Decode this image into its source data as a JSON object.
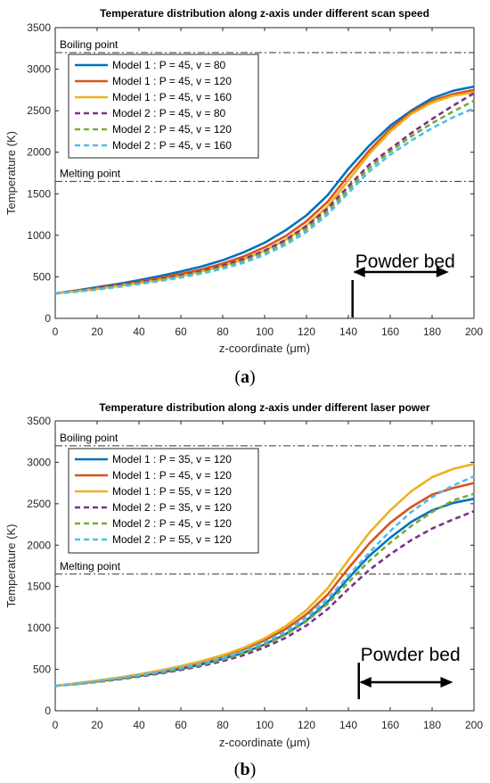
{
  "panels": [
    {
      "id": "a",
      "panel_label": "a",
      "title": "Temperature distribution along z-axis under different scan speed",
      "boiling_label": "Boiling point",
      "melting_label": "Melting point",
      "powder_label": "Powder bed",
      "xlabel": "z-coordinate (μm)",
      "ylabel": "Temperature (K)"
    },
    {
      "id": "b",
      "panel_label": "b",
      "title": "Temperature distribution along z-axis under different laser power",
      "boiling_label": "Boiling point",
      "melting_label": "Melting point",
      "powder_label": "Powder bed",
      "xlabel": "z-coordinate (μm)",
      "ylabel": "Temperature (K)"
    }
  ],
  "chart_data": [
    {
      "type": "line",
      "title": "Temperature distribution along z-axis under different scan speed",
      "xlabel": "z-coordinate (μm)",
      "ylabel": "Temperature (K)",
      "xlim": [
        0,
        200
      ],
      "ylim": [
        0,
        3500
      ],
      "xticks": [
        0,
        20,
        40,
        60,
        80,
        100,
        120,
        140,
        160,
        180,
        200
      ],
      "yticks": [
        0,
        500,
        1000,
        1500,
        2000,
        2500,
        3000,
        3500
      ],
      "grid": false,
      "legend_position": "top-left",
      "reference_lines": [
        {
          "label": "Boiling point",
          "y": 3200
        },
        {
          "label": "Melting point",
          "y": 1650
        }
      ],
      "annotation": {
        "label": "Powder bed",
        "x_start": 142,
        "x_end": 188
      },
      "x": [
        0,
        10,
        20,
        30,
        40,
        50,
        60,
        70,
        80,
        90,
        100,
        110,
        120,
        130,
        140,
        150,
        160,
        170,
        180,
        190,
        200
      ],
      "series": [
        {
          "name": "Model 1 : P = 45, v = 80",
          "color": "#0072BD",
          "dash": "solid",
          "values": [
            300,
            335,
            375,
            415,
            460,
            510,
            565,
            625,
            700,
            795,
            910,
            1060,
            1240,
            1480,
            1800,
            2080,
            2320,
            2500,
            2650,
            2740,
            2790
          ]
        },
        {
          "name": "Model 1 : P = 45, v = 120",
          "color": "#D95319",
          "dash": "solid",
          "values": [
            300,
            330,
            365,
            400,
            440,
            485,
            535,
            590,
            660,
            745,
            855,
            990,
            1170,
            1400,
            1720,
            2020,
            2280,
            2480,
            2620,
            2700,
            2750
          ]
        },
        {
          "name": "Model 1 : P = 45, v = 160",
          "color": "#EDB120",
          "dash": "solid",
          "values": [
            300,
            325,
            355,
            390,
            425,
            465,
            510,
            565,
            630,
            710,
            815,
            945,
            1120,
            1345,
            1660,
            1980,
            2250,
            2460,
            2600,
            2680,
            2720
          ]
        },
        {
          "name": "Model 2 : P = 45, v = 80",
          "color": "#7E2F8E",
          "dash": "dashed",
          "values": [
            300,
            330,
            360,
            395,
            430,
            470,
            515,
            570,
            635,
            715,
            815,
            945,
            1110,
            1320,
            1590,
            1850,
            2040,
            2230,
            2400,
            2560,
            2710
          ]
        },
        {
          "name": "Model 2 : P = 45, v = 120",
          "color": "#77AC30",
          "dash": "dashed",
          "values": [
            300,
            325,
            352,
            385,
            420,
            460,
            505,
            555,
            615,
            690,
            790,
            915,
            1075,
            1285,
            1550,
            1810,
            2010,
            2190,
            2350,
            2490,
            2620
          ]
        },
        {
          "name": "Model 2 : P = 45, v = 160",
          "color": "#4DBEEE",
          "dash": "dashed",
          "values": [
            300,
            320,
            347,
            378,
            412,
            450,
            492,
            540,
            598,
            670,
            765,
            885,
            1040,
            1250,
            1510,
            1770,
            1970,
            2140,
            2290,
            2420,
            2530
          ]
        }
      ]
    },
    {
      "type": "line",
      "title": "Temperature distribution along z-axis under different laser power",
      "xlabel": "z-coordinate (μm)",
      "ylabel": "Temperature (K)",
      "xlim": [
        0,
        200
      ],
      "ylim": [
        0,
        3500
      ],
      "xticks": [
        0,
        20,
        40,
        60,
        80,
        100,
        120,
        140,
        160,
        180,
        200
      ],
      "yticks": [
        0,
        500,
        1000,
        1500,
        2000,
        2500,
        3000,
        3500
      ],
      "grid": false,
      "legend_position": "top-left",
      "reference_lines": [
        {
          "label": "Boiling point",
          "y": 3200
        },
        {
          "label": "Melting point",
          "y": 1650
        }
      ],
      "annotation": {
        "label": "Powder bed",
        "x_start": 145,
        "x_end": 190
      },
      "x": [
        0,
        10,
        20,
        30,
        40,
        50,
        60,
        70,
        80,
        90,
        100,
        110,
        120,
        130,
        140,
        150,
        160,
        170,
        180,
        190,
        200
      ],
      "series": [
        {
          "name": "Model 1 : P = 35, v = 120",
          "color": "#0072BD",
          "dash": "solid",
          "values": [
            300,
            325,
            355,
            385,
            420,
            460,
            505,
            560,
            625,
            700,
            800,
            925,
            1090,
            1310,
            1600,
            1870,
            2090,
            2280,
            2420,
            2510,
            2560
          ]
        },
        {
          "name": "Model 1 : P = 45, v = 120",
          "color": "#D95319",
          "dash": "solid",
          "values": [
            300,
            330,
            360,
            395,
            435,
            480,
            530,
            585,
            655,
            740,
            850,
            985,
            1165,
            1400,
            1720,
            2020,
            2270,
            2460,
            2610,
            2690,
            2750
          ]
        },
        {
          "name": "Model 1 : P = 55, v = 120",
          "color": "#EDB120",
          "dash": "solid",
          "values": [
            300,
            332,
            365,
            400,
            440,
            487,
            540,
            600,
            672,
            760,
            875,
            1020,
            1215,
            1475,
            1820,
            2150,
            2420,
            2650,
            2820,
            2920,
            2980
          ]
        },
        {
          "name": "Model 2 : P = 35, v = 120",
          "color": "#7E2F8E",
          "dash": "dashed",
          "values": [
            300,
            322,
            348,
            378,
            412,
            450,
            493,
            542,
            600,
            672,
            765,
            880,
            1030,
            1225,
            1470,
            1700,
            1890,
            2060,
            2200,
            2310,
            2410
          ]
        },
        {
          "name": "Model 2 : P = 45, v = 120",
          "color": "#77AC30",
          "dash": "dashed",
          "values": [
            300,
            325,
            352,
            384,
            420,
            460,
            505,
            555,
            618,
            695,
            795,
            920,
            1080,
            1290,
            1550,
            1810,
            2030,
            2230,
            2400,
            2540,
            2620
          ]
        },
        {
          "name": "Model 2 : P = 55, v = 120",
          "color": "#4DBEEE",
          "dash": "dashed",
          "values": [
            300,
            328,
            357,
            391,
            430,
            473,
            520,
            575,
            640,
            722,
            827,
            958,
            1130,
            1350,
            1630,
            1910,
            2170,
            2400,
            2580,
            2720,
            2830
          ]
        }
      ]
    }
  ]
}
